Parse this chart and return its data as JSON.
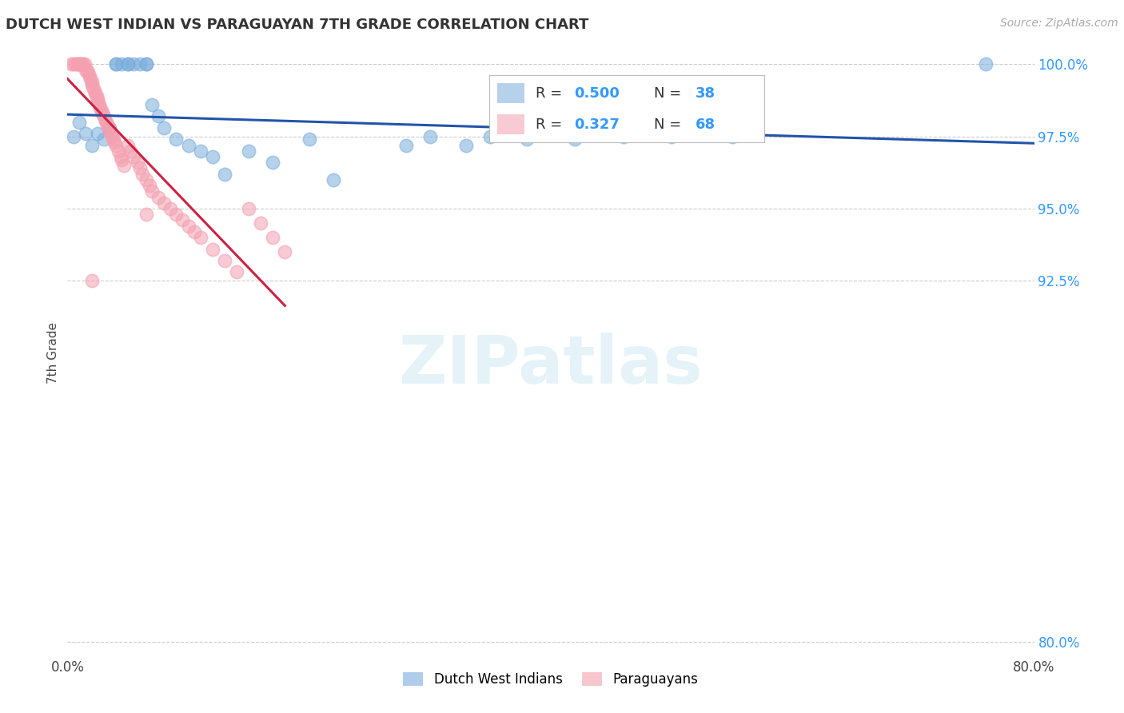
{
  "title": "DUTCH WEST INDIAN VS PARAGUAYAN 7TH GRADE CORRELATION CHART",
  "source_text": "Source: ZipAtlas.com",
  "ylabel": "7th Grade",
  "xlim": [
    0.0,
    0.8
  ],
  "ylim": [
    0.795,
    1.005
  ],
  "legend_blue_label": "Dutch West Indians",
  "legend_pink_label": "Paraguayans",
  "R_blue": 0.5,
  "N_blue": 38,
  "R_pink": 0.327,
  "N_pink": 68,
  "blue_color": "#7aaddc",
  "pink_color": "#f4a0b0",
  "blue_line_color": "#2255aa",
  "pink_line_color": "#cc2244",
  "watermark_text": "ZIPatlas",
  "blue_scatter_x": [
    0.005,
    0.01,
    0.015,
    0.02,
    0.025,
    0.03,
    0.035,
    0.04,
    0.04,
    0.045,
    0.05,
    0.05,
    0.055,
    0.06,
    0.065,
    0.065,
    0.07,
    0.075,
    0.08,
    0.09,
    0.1,
    0.11,
    0.12,
    0.13,
    0.15,
    0.17,
    0.2,
    0.22,
    0.28,
    0.3,
    0.33,
    0.35,
    0.38,
    0.42,
    0.46,
    0.5,
    0.55,
    0.76
  ],
  "blue_scatter_y": [
    0.975,
    0.98,
    0.976,
    0.972,
    0.976,
    0.974,
    0.978,
    1.0,
    1.0,
    1.0,
    1.0,
    1.0,
    1.0,
    1.0,
    1.0,
    1.0,
    0.986,
    0.982,
    0.978,
    0.974,
    0.972,
    0.97,
    0.968,
    0.962,
    0.97,
    0.966,
    0.974,
    0.96,
    0.972,
    0.975,
    0.972,
    0.975,
    0.974,
    0.974,
    0.975,
    0.975,
    0.975,
    1.0
  ],
  "pink_scatter_x": [
    0.003,
    0.005,
    0.007,
    0.008,
    0.009,
    0.01,
    0.011,
    0.012,
    0.013,
    0.014,
    0.015,
    0.016,
    0.017,
    0.018,
    0.019,
    0.02,
    0.02,
    0.021,
    0.022,
    0.023,
    0.024,
    0.025,
    0.025,
    0.026,
    0.027,
    0.028,
    0.029,
    0.03,
    0.031,
    0.032,
    0.033,
    0.034,
    0.035,
    0.036,
    0.037,
    0.038,
    0.039,
    0.04,
    0.042,
    0.044,
    0.045,
    0.047,
    0.05,
    0.052,
    0.055,
    0.058,
    0.06,
    0.062,
    0.065,
    0.068,
    0.07,
    0.075,
    0.08,
    0.085,
    0.09,
    0.095,
    0.1,
    0.105,
    0.11,
    0.12,
    0.13,
    0.14,
    0.15,
    0.16,
    0.17,
    0.18,
    0.065,
    0.02
  ],
  "pink_scatter_y": [
    1.0,
    1.0,
    1.0,
    1.0,
    1.0,
    1.0,
    1.0,
    1.0,
    1.0,
    1.0,
    0.998,
    0.998,
    0.997,
    0.996,
    0.995,
    0.994,
    0.993,
    0.992,
    0.991,
    0.99,
    0.989,
    0.988,
    0.987,
    0.986,
    0.985,
    0.984,
    0.983,
    0.982,
    0.981,
    0.98,
    0.979,
    0.978,
    0.977,
    0.976,
    0.975,
    0.974,
    0.973,
    0.972,
    0.97,
    0.968,
    0.967,
    0.965,
    0.972,
    0.97,
    0.968,
    0.966,
    0.964,
    0.962,
    0.96,
    0.958,
    0.956,
    0.954,
    0.952,
    0.95,
    0.948,
    0.946,
    0.944,
    0.942,
    0.94,
    0.936,
    0.932,
    0.928,
    0.95,
    0.945,
    0.94,
    0.935,
    0.948,
    0.925
  ],
  "grid_color": "#cccccc",
  "ytick_right_pos": [
    1.0,
    0.975,
    0.95,
    0.925,
    0.8
  ],
  "ytick_right_lab": [
    "100.0%",
    "97.5%",
    "95.0%",
    "92.5%",
    "80.0%"
  ]
}
